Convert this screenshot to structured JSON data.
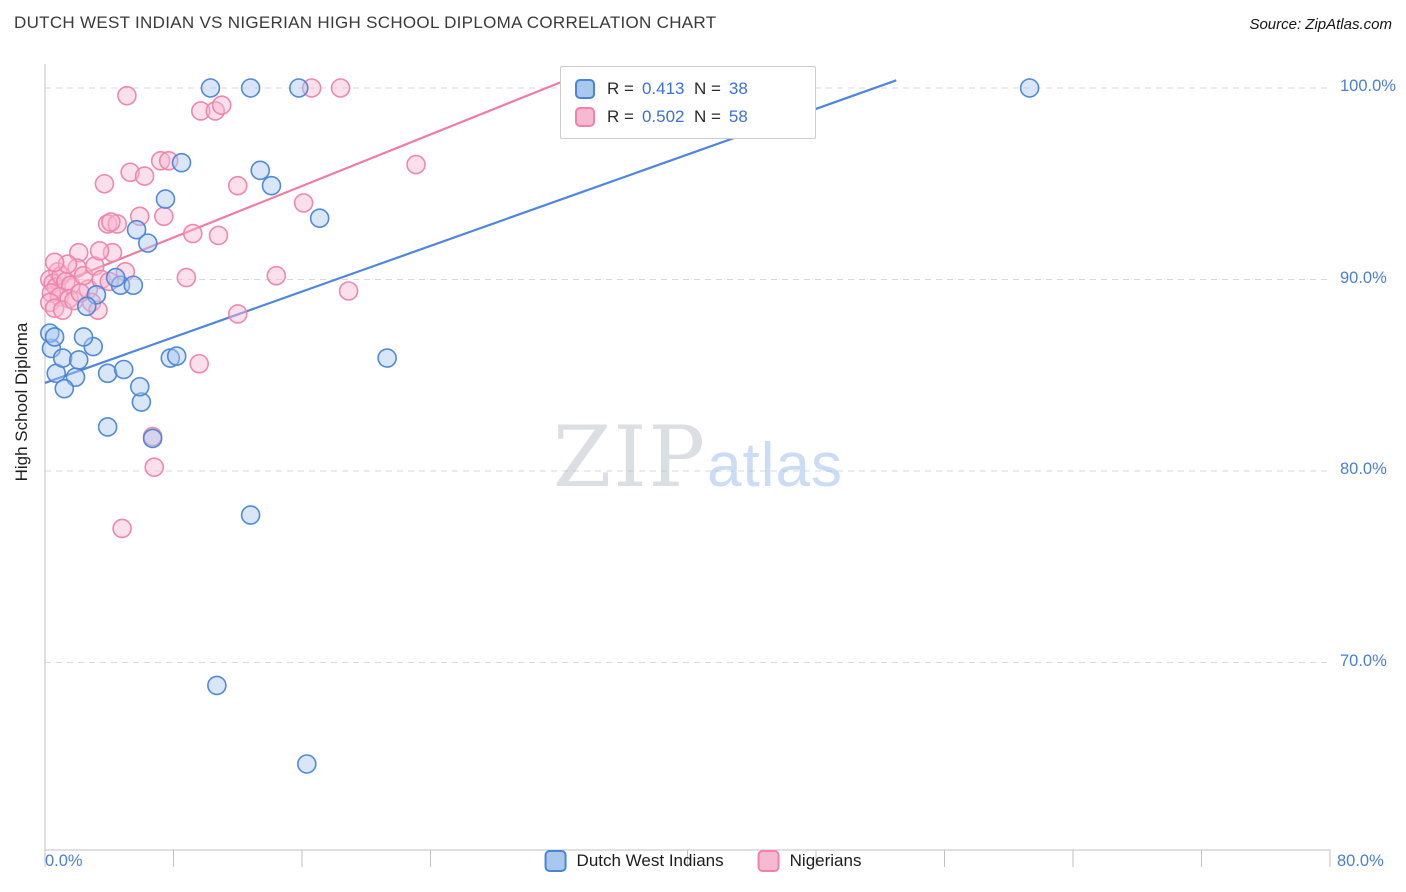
{
  "header": {
    "title": "DUTCH WEST INDIAN VS NIGERIAN HIGH SCHOOL DIPLOMA CORRELATION CHART",
    "source": "Source: ZipAtlas.com"
  },
  "watermark": {
    "zip": "ZIP",
    "atlas": "atlas"
  },
  "axes": {
    "y_label": "High School Diploma",
    "y_ticks": [
      "100.0%",
      "90.0%",
      "80.0%",
      "70.0%"
    ],
    "x_min_label": "0.0%",
    "x_max_label": "80.0%"
  },
  "legend_box": {
    "series": [
      {
        "r_label": "R =",
        "r": "0.413",
        "n_label": "N =",
        "n": "38"
      },
      {
        "r_label": "R =",
        "r": "0.502",
        "n_label": "N =",
        "n": "58"
      }
    ]
  },
  "bottom_legend": [
    {
      "label": "Dutch West Indians"
    },
    {
      "label": "Nigerians"
    }
  ],
  "chart_data": {
    "type": "scatter",
    "title": "DUTCH WEST INDIAN VS NIGERIAN HIGH SCHOOL DIPLOMA CORRELATION CHART",
    "ylabel": "High School Diploma",
    "xlim": [
      0,
      80
    ],
    "ylim": [
      60,
      101
    ],
    "grid": "horizontal-dashed",
    "y_gridlines": [
      100,
      90,
      80,
      70
    ],
    "y_tick_labels": [
      "100.0%",
      "90.0%",
      "80.0%",
      "70.0%"
    ],
    "x_ticks": [
      0,
      8,
      16,
      24,
      32,
      40,
      48,
      56,
      64,
      72,
      80
    ],
    "x_edge_labels": [
      "0.0%",
      "80.0%"
    ],
    "legend_position": "bottom-center",
    "series": [
      {
        "name": "Dutch West Indians",
        "R": 0.413,
        "N": 38,
        "fill": "#a8c8f0",
        "stroke": "#4a84d8",
        "line": "#3b78dc",
        "trend": [
          [
            0,
            84.6
          ],
          [
            53,
            100.4
          ]
        ],
        "points": [
          [
            10.3,
            100
          ],
          [
            12.8,
            100
          ],
          [
            15.8,
            100
          ],
          [
            61.3,
            100
          ],
          [
            8.5,
            96.1
          ],
          [
            7.5,
            94.2
          ],
          [
            13.4,
            95.7
          ],
          [
            14.1,
            94.9
          ],
          [
            17.1,
            93.2
          ],
          [
            5.7,
            92.6
          ],
          [
            6.4,
            91.9
          ],
          [
            4.7,
            89.7
          ],
          [
            5.5,
            89.7
          ],
          [
            3.2,
            89.2
          ],
          [
            2.6,
            88.6
          ],
          [
            4.4,
            90.1
          ],
          [
            3.9,
            85.1
          ],
          [
            6.0,
            83.6
          ],
          [
            7.8,
            85.9
          ],
          [
            8.2,
            86.0
          ],
          [
            21.3,
            85.9
          ],
          [
            0.4,
            86.4
          ],
          [
            0.7,
            85.1
          ],
          [
            1.1,
            85.9
          ],
          [
            1.9,
            84.9
          ],
          [
            1.2,
            84.3
          ],
          [
            2.1,
            85.8
          ],
          [
            3.0,
            86.5
          ],
          [
            4.9,
            85.3
          ],
          [
            3.9,
            82.3
          ],
          [
            6.7,
            81.7
          ],
          [
            12.8,
            77.7
          ],
          [
            10.7,
            68.8
          ],
          [
            16.3,
            64.7
          ],
          [
            0.3,
            87.2
          ],
          [
            0.6,
            87.0
          ],
          [
            5.9,
            84.4
          ],
          [
            2.4,
            87.0
          ]
        ]
      },
      {
        "name": "Nigerians",
        "R": 0.502,
        "N": 58,
        "fill": "#f7b9d0",
        "stroke": "#ef83aa",
        "line": "#f06e98",
        "trend": [
          [
            0,
            89.5
          ],
          [
            32.4,
            100.4
          ]
        ],
        "points": [
          [
            5.1,
            99.6
          ],
          [
            9.7,
            98.8
          ],
          [
            10.6,
            98.8
          ],
          [
            11.0,
            99.1
          ],
          [
            16.6,
            100
          ],
          [
            18.4,
            100
          ],
          [
            7.2,
            96.2
          ],
          [
            7.7,
            96.2
          ],
          [
            3.7,
            95.0
          ],
          [
            5.3,
            95.6
          ],
          [
            6.2,
            95.4
          ],
          [
            12.0,
            94.9
          ],
          [
            23.1,
            96.0
          ],
          [
            3.9,
            92.9
          ],
          [
            4.5,
            92.9
          ],
          [
            5.9,
            93.3
          ],
          [
            7.4,
            93.3
          ],
          [
            9.2,
            92.4
          ],
          [
            10.8,
            92.3
          ],
          [
            16.1,
            94.0
          ],
          [
            4.2,
            91.4
          ],
          [
            2.1,
            91.4
          ],
          [
            0.8,
            90.4
          ],
          [
            0.3,
            90.0
          ],
          [
            0.5,
            89.8
          ],
          [
            0.7,
            89.6
          ],
          [
            1.0,
            90.2
          ],
          [
            1.3,
            89.9
          ],
          [
            1.6,
            89.7
          ],
          [
            0.4,
            89.3
          ],
          [
            0.9,
            89.1
          ],
          [
            1.5,
            89.0
          ],
          [
            2.7,
            89.5
          ],
          [
            8.8,
            90.1
          ],
          [
            14.4,
            90.2
          ],
          [
            18.9,
            89.4
          ],
          [
            0.3,
            88.8
          ],
          [
            0.6,
            88.5
          ],
          [
            1.1,
            88.4
          ],
          [
            2.0,
            90.6
          ],
          [
            2.4,
            90.2
          ],
          [
            3.1,
            90.7
          ],
          [
            3.5,
            90.0
          ],
          [
            4.0,
            89.9
          ],
          [
            2.9,
            88.8
          ],
          [
            3.3,
            88.4
          ],
          [
            12.0,
            88.2
          ],
          [
            9.6,
            85.6
          ],
          [
            6.7,
            81.8
          ],
          [
            6.8,
            80.2
          ],
          [
            4.8,
            77.0
          ],
          [
            1.8,
            88.9
          ],
          [
            2.2,
            89.3
          ],
          [
            1.4,
            90.8
          ],
          [
            0.6,
            90.9
          ],
          [
            4.1,
            93.0
          ],
          [
            5.0,
            90.4
          ],
          [
            3.4,
            91.5
          ]
        ]
      }
    ]
  }
}
